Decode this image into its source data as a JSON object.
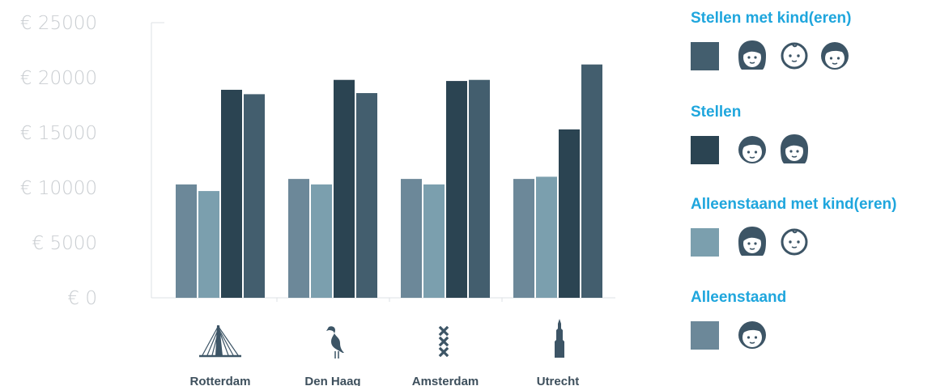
{
  "chart_data": {
    "type": "bar",
    "categories": [
      "Rotterdam",
      "Den Haag",
      "Amsterdam",
      "Utrecht"
    ],
    "category_icons": [
      "erasmus-bridge-icon",
      "stork-icon",
      "three-crosses-icon",
      "dom-tower-icon"
    ],
    "series": [
      {
        "name": "Alleenstaand",
        "color": "#6c8899",
        "values": [
          10300,
          10800,
          10800,
          10800
        ]
      },
      {
        "name": "Alleenstaand met kind(eren)",
        "color": "#7b9fae",
        "values": [
          9700,
          10300,
          10300,
          11000
        ]
      },
      {
        "name": "Stellen",
        "color": "#2b4452",
        "values": [
          18900,
          19800,
          19700,
          15300
        ]
      },
      {
        "name": "Stellen met kind(eren)",
        "color": "#435e6e",
        "values": [
          18500,
          18600,
          19800,
          21200
        ]
      }
    ],
    "y_ticks": [
      "€ 0",
      "€ 5000",
      "€ 10000",
      "€ 15000",
      "€ 20000",
      "€ 25000"
    ],
    "ylim": [
      0,
      25000
    ],
    "grid": false,
    "legend_position": "right",
    "legend": [
      {
        "label": "Stellen met kind(eren)",
        "color": "#435e6e",
        "faces": [
          "girl-face-icon",
          "baby-face-icon",
          "boy-face-icon"
        ]
      },
      {
        "label": "Stellen",
        "color": "#2b4452",
        "faces": [
          "boy-face-icon",
          "girl-face-icon"
        ]
      },
      {
        "label": "Alleenstaand met kind(eren)",
        "color": "#7b9fae",
        "faces": [
          "girl-face-icon",
          "baby-face-icon"
        ]
      },
      {
        "label": "Alleenstaand",
        "color": "#6c8899",
        "faces": [
          "boy-face-icon"
        ]
      }
    ]
  }
}
